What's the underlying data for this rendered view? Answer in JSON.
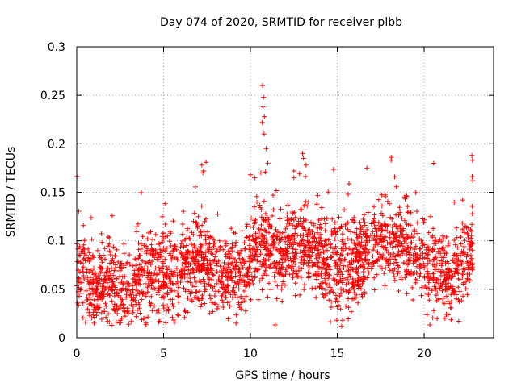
{
  "chart_data": {
    "type": "scatter",
    "title": "Day 074 of 2020, SRMTID for receiver plbb",
    "xlabel": "GPS time / hours",
    "ylabel": "SRMTID / TECUs",
    "xlim": [
      0,
      24
    ],
    "ylim": [
      0,
      0.3
    ],
    "xticks": [
      0,
      5,
      10,
      15,
      20
    ],
    "xtick_labels": [
      "0",
      "5",
      "10",
      "15",
      "20"
    ],
    "yticks": [
      0,
      0.05,
      0.1,
      0.15,
      0.2,
      0.25,
      0.3
    ],
    "ytick_labels": [
      "0",
      "0.05",
      "0.1",
      "0.15",
      "0.2",
      "0.25",
      "0.3"
    ],
    "grid": true,
    "marker": "+",
    "color": "#ff0000",
    "data_range_hours": [
      0,
      22.8
    ],
    "baseline_profile": [
      {
        "x": 0.0,
        "y": 0.075
      },
      {
        "x": 0.5,
        "y": 0.065
      },
      {
        "x": 1.0,
        "y": 0.05
      },
      {
        "x": 1.5,
        "y": 0.06
      },
      {
        "x": 2.0,
        "y": 0.06
      },
      {
        "x": 2.5,
        "y": 0.045
      },
      {
        "x": 3.0,
        "y": 0.05
      },
      {
        "x": 3.5,
        "y": 0.058
      },
      {
        "x": 4.0,
        "y": 0.062
      },
      {
        "x": 4.5,
        "y": 0.065
      },
      {
        "x": 5.0,
        "y": 0.068
      },
      {
        "x": 5.5,
        "y": 0.068
      },
      {
        "x": 6.0,
        "y": 0.07
      },
      {
        "x": 6.5,
        "y": 0.072
      },
      {
        "x": 7.0,
        "y": 0.078
      },
      {
        "x": 7.5,
        "y": 0.08
      },
      {
        "x": 8.0,
        "y": 0.07
      },
      {
        "x": 8.5,
        "y": 0.065
      },
      {
        "x": 9.0,
        "y": 0.062
      },
      {
        "x": 9.5,
        "y": 0.065
      },
      {
        "x": 10.0,
        "y": 0.08
      },
      {
        "x": 10.5,
        "y": 0.095
      },
      {
        "x": 11.0,
        "y": 0.09
      },
      {
        "x": 11.5,
        "y": 0.085
      },
      {
        "x": 12.0,
        "y": 0.088
      },
      {
        "x": 12.5,
        "y": 0.092
      },
      {
        "x": 13.0,
        "y": 0.095
      },
      {
        "x": 13.5,
        "y": 0.088
      },
      {
        "x": 14.0,
        "y": 0.082
      },
      {
        "x": 14.5,
        "y": 0.075
      },
      {
        "x": 15.0,
        "y": 0.07
      },
      {
        "x": 15.5,
        "y": 0.072
      },
      {
        "x": 16.0,
        "y": 0.078
      },
      {
        "x": 16.5,
        "y": 0.085
      },
      {
        "x": 17.0,
        "y": 0.095
      },
      {
        "x": 17.5,
        "y": 0.1
      },
      {
        "x": 18.0,
        "y": 0.098
      },
      {
        "x": 18.5,
        "y": 0.095
      },
      {
        "x": 19.0,
        "y": 0.09
      },
      {
        "x": 19.5,
        "y": 0.085
      },
      {
        "x": 20.0,
        "y": 0.08
      },
      {
        "x": 20.5,
        "y": 0.072
      },
      {
        "x": 21.0,
        "y": 0.065
      },
      {
        "x": 21.5,
        "y": 0.06
      },
      {
        "x": 22.0,
        "y": 0.068
      },
      {
        "x": 22.5,
        "y": 0.085
      },
      {
        "x": 22.8,
        "y": 0.09
      }
    ],
    "notable_points": [
      {
        "x": 10.7,
        "y": 0.26
      },
      {
        "x": 10.75,
        "y": 0.248
      },
      {
        "x": 10.72,
        "y": 0.238
      },
      {
        "x": 10.8,
        "y": 0.228
      },
      {
        "x": 10.68,
        "y": 0.222
      },
      {
        "x": 10.78,
        "y": 0.21
      },
      {
        "x": 10.9,
        "y": 0.195
      },
      {
        "x": 11.0,
        "y": 0.18
      },
      {
        "x": 10.6,
        "y": 0.17
      },
      {
        "x": 7.2,
        "y": 0.178
      },
      {
        "x": 7.3,
        "y": 0.172
      },
      {
        "x": 10.0,
        "y": 0.168
      },
      {
        "x": 12.5,
        "y": 0.172
      },
      {
        "x": 12.5,
        "y": 0.165
      },
      {
        "x": 13.0,
        "y": 0.19
      },
      {
        "x": 13.05,
        "y": 0.185
      },
      {
        "x": 13.2,
        "y": 0.178
      },
      {
        "x": 16.7,
        "y": 0.175
      },
      {
        "x": 22.75,
        "y": 0.188
      },
      {
        "x": 22.78,
        "y": 0.183
      },
      {
        "x": 22.8,
        "y": 0.162
      },
      {
        "x": 15.3,
        "y": 0.018
      },
      {
        "x": 15.25,
        "y": 0.012
      },
      {
        "x": 21.2,
        "y": 0.02
      },
      {
        "x": 0.5,
        "y": 0.016
      },
      {
        "x": 1.0,
        "y": 0.015
      },
      {
        "x": 2.5,
        "y": 0.018
      }
    ],
    "random_seed": 74,
    "series": [
      {
        "name": "SRMTID",
        "n_points": 2600,
        "spread": 0.022
      }
    ]
  }
}
